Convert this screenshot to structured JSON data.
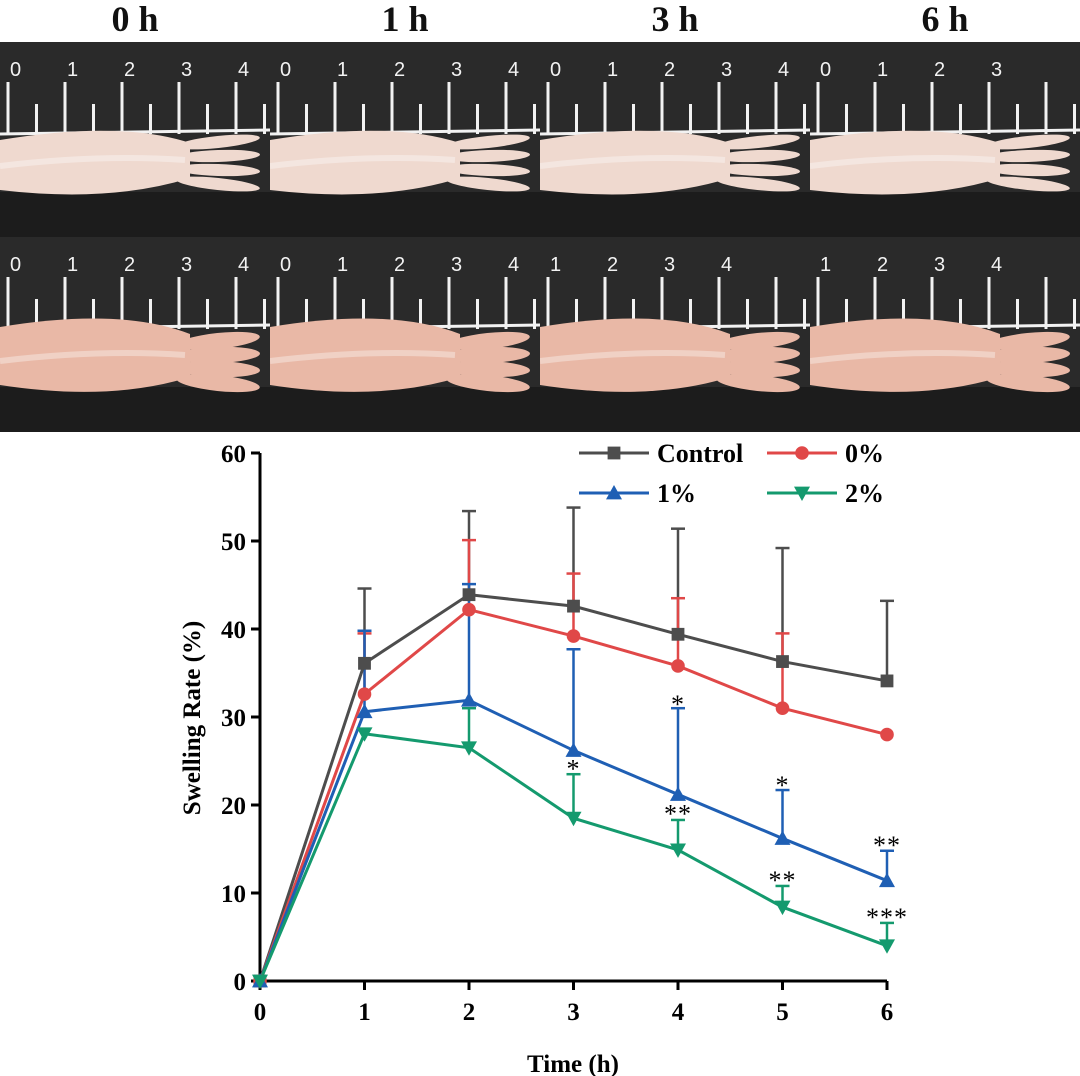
{
  "panel_headers": [
    "0 h",
    "1 h",
    "3 h",
    "6 h"
  ],
  "ruler_numbers": [
    [
      "0",
      "1",
      "2",
      "3",
      "4"
    ],
    [
      "0",
      "1",
      "2",
      "3",
      "4"
    ],
    [
      "0",
      "1",
      "2",
      "3",
      "4"
    ],
    [
      "0",
      "1",
      "2",
      "3"
    ],
    [
      "0",
      "1",
      "2",
      "3",
      "4"
    ],
    [
      "0",
      "1",
      "2",
      "3",
      "4"
    ],
    [
      "1",
      "2",
      "3",
      "4"
    ],
    [
      "1",
      "2",
      "3",
      "4"
    ]
  ],
  "colors": {
    "control": "#4d4d4d",
    "zero": "#e04848",
    "one": "#1f5fb4",
    "two": "#149a6e",
    "board": "#2a2a2a",
    "skin_healthy": "#efd9cf",
    "skin_swollen": "#e9b8a6"
  },
  "chart_data": {
    "type": "line",
    "xlabel": "Time (h)",
    "ylabel": "Swelling Rate (%)",
    "x": [
      0,
      1,
      2,
      3,
      4,
      5,
      6
    ],
    "xlim": [
      0,
      6
    ],
    "ylim": [
      0,
      60
    ],
    "yticks": [
      0,
      10,
      20,
      30,
      40,
      50,
      60
    ],
    "xticks": [
      0,
      1,
      2,
      3,
      4,
      5,
      6
    ],
    "legend_position": "top-right",
    "series": [
      {
        "name": "Control",
        "marker": "square",
        "color": "#4d4d4d",
        "values": [
          0,
          36.1,
          43.9,
          42.6,
          39.4,
          36.3,
          34.1
        ],
        "err": [
          0,
          8.5,
          9.5,
          11.2,
          12.0,
          12.9,
          9.1
        ]
      },
      {
        "name": "0%",
        "marker": "circle",
        "color": "#e04848",
        "values": [
          0,
          32.6,
          42.2,
          39.2,
          35.8,
          31.0,
          28.0
        ],
        "err": [
          0,
          6.9,
          7.9,
          7.1,
          7.7,
          8.5,
          0
        ]
      },
      {
        "name": "1%",
        "marker": "triangle-up",
        "color": "#1f5fb4",
        "values": [
          0,
          30.6,
          31.9,
          26.2,
          21.2,
          16.2,
          11.4
        ],
        "err": [
          0,
          9.2,
          13.2,
          11.5,
          9.8,
          5.5,
          3.4
        ]
      },
      {
        "name": "2%",
        "marker": "triangle-down",
        "color": "#149a6e",
        "values": [
          0,
          28.1,
          26.5,
          18.5,
          14.9,
          8.4,
          4.0
        ],
        "err": [
          0,
          0,
          4.5,
          5.0,
          3.4,
          2.4,
          2.6
        ]
      }
    ],
    "annotations": [
      {
        "text": "*",
        "x": 3,
        "y": 24.5
      },
      {
        "text": "*",
        "x": 4,
        "y": 31.8
      },
      {
        "text": "*",
        "x": 5,
        "y": 22.6
      },
      {
        "text": "**",
        "x": 6,
        "y": 15.8
      },
      {
        "text": "**",
        "x": 4,
        "y": 19.4
      },
      {
        "text": "**",
        "x": 5,
        "y": 11.8
      },
      {
        "text": "***",
        "x": 6,
        "y": 7.6
      }
    ]
  }
}
